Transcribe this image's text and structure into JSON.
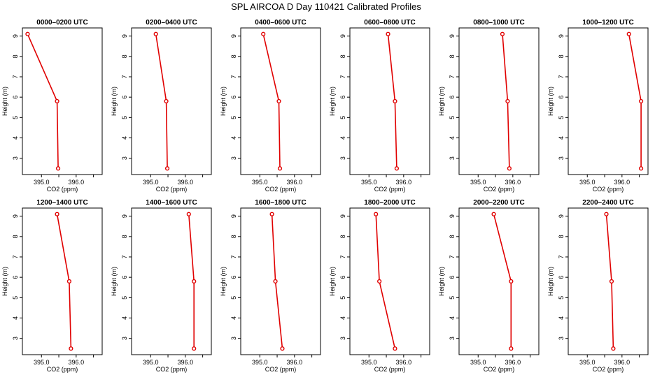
{
  "title": "SPL AIRCOA D  Day 110421  Calibrated Profiles",
  "chart_data": {
    "type": "line",
    "xlabel": "CO2 (ppm)",
    "ylabel": "Height (m)",
    "xlim": [
      394.45,
      396.75
    ],
    "ylim": [
      2.2,
      9.4
    ],
    "xticks": [
      395.0,
      396.0
    ],
    "xtick_labels": [
      "395.0",
      "396.0"
    ],
    "yticks": [
      3,
      4,
      5,
      6,
      7,
      8,
      9
    ],
    "heights": [
      9.1,
      5.8,
      2.5
    ],
    "line_color": "#e00000",
    "panels": [
      {
        "title": "0000–0200 UTC",
        "co2": [
          394.6,
          395.45,
          395.48
        ]
      },
      {
        "title": "0200–0400 UTC",
        "co2": [
          395.15,
          395.45,
          395.48
        ]
      },
      {
        "title": "0400–0600 UTC",
        "co2": [
          395.1,
          395.55,
          395.58
        ]
      },
      {
        "title": "0600–0800 UTC",
        "co2": [
          395.55,
          395.75,
          395.8
        ]
      },
      {
        "title": "0800–1000 UTC",
        "co2": [
          395.7,
          395.85,
          395.9
        ]
      },
      {
        "title": "1000–1200 UTC",
        "co2": [
          396.2,
          396.55,
          396.55
        ]
      },
      {
        "title": "1200–1400 UTC",
        "co2": [
          395.45,
          395.8,
          395.85
        ]
      },
      {
        "title": "1400–1600 UTC",
        "co2": [
          396.1,
          396.25,
          396.25
        ]
      },
      {
        "title": "1600–1800 UTC",
        "co2": [
          395.35,
          395.45,
          395.65
        ]
      },
      {
        "title": "1800–2000 UTC",
        "co2": [
          395.2,
          395.3,
          395.75
        ]
      },
      {
        "title": "2000–2200 UTC",
        "co2": [
          395.45,
          395.95,
          395.95
        ]
      },
      {
        "title": "2200–2400 UTC",
        "co2": [
          395.55,
          395.7,
          395.75
        ]
      }
    ]
  }
}
